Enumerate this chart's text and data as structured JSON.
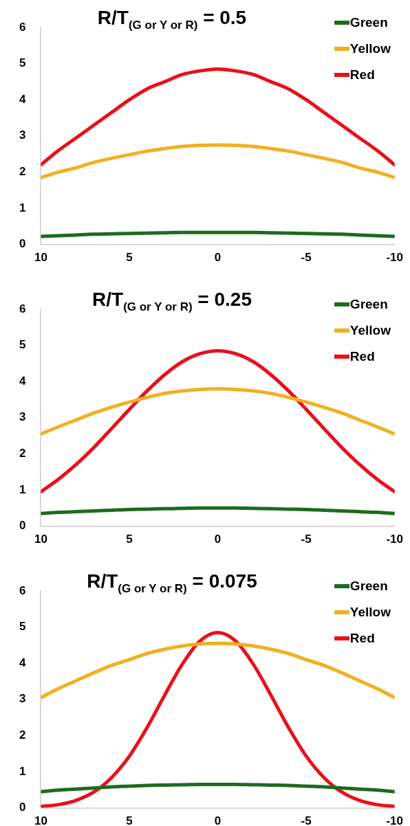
{
  "chart_data": [
    {
      "type": "line",
      "title": "R/T$_{(G or Y or R)}$ = 0.5",
      "x": [
        10,
        9,
        8,
        7,
        6,
        5,
        4,
        3,
        2,
        1,
        0,
        -1,
        -2,
        -3,
        -4,
        -5,
        -6,
        -7,
        -8,
        -9,
        -10
      ],
      "xlim": [
        10,
        -10
      ],
      "xticks": [
        10,
        5,
        0,
        -5,
        -10
      ],
      "ylim": [
        0,
        6
      ],
      "yticks": [
        0,
        1,
        2,
        3,
        4,
        5,
        6
      ],
      "grid": false,
      "legend": "top right",
      "marker": "none",
      "line_style": "solid",
      "series": [
        {
          "name": "Green",
          "color": "#1e6b1e",
          "values": [
            0.22,
            0.24,
            0.26,
            0.28,
            0.29,
            0.3,
            0.31,
            0.32,
            0.33,
            0.33,
            0.33,
            0.33,
            0.33,
            0.32,
            0.31,
            0.3,
            0.29,
            0.28,
            0.26,
            0.24,
            0.22
          ]
        },
        {
          "name": "Yellow",
          "color": "#f0b020",
          "values": [
            1.85,
            2.0,
            2.12,
            2.27,
            2.38,
            2.48,
            2.58,
            2.65,
            2.71,
            2.74,
            2.75,
            2.74,
            2.71,
            2.65,
            2.58,
            2.48,
            2.38,
            2.27,
            2.12,
            2.0,
            1.85
          ]
        },
        {
          "name": "Red",
          "color": "#e8101a",
          "values": [
            2.2,
            2.6,
            2.95,
            3.3,
            3.65,
            4.0,
            4.3,
            4.5,
            4.7,
            4.8,
            4.85,
            4.8,
            4.7,
            4.5,
            4.3,
            4.0,
            3.65,
            3.3,
            2.95,
            2.6,
            2.2
          ]
        }
      ]
    },
    {
      "type": "line",
      "title": "R/T$_{(G or Y or R)}$ = 0.25",
      "x": [
        10,
        9,
        8,
        7,
        6,
        5,
        4,
        3,
        2,
        1,
        0,
        -1,
        -2,
        -3,
        -4,
        -5,
        -6,
        -7,
        -8,
        -9,
        -10
      ],
      "xlim": [
        10,
        -10
      ],
      "xticks": [
        10,
        5,
        0,
        -5,
        -10
      ],
      "ylim": [
        0,
        6
      ],
      "yticks": [
        0,
        1,
        2,
        3,
        4,
        5,
        6
      ],
      "grid": false,
      "legend": "top right",
      "marker": "none",
      "line_style": "solid",
      "series": [
        {
          "name": "Green",
          "color": "#1e6b1e",
          "values": [
            0.35,
            0.38,
            0.4,
            0.42,
            0.44,
            0.46,
            0.47,
            0.48,
            0.49,
            0.5,
            0.5,
            0.5,
            0.49,
            0.48,
            0.47,
            0.46,
            0.44,
            0.42,
            0.4,
            0.38,
            0.35
          ]
        },
        {
          "name": "Yellow",
          "color": "#f0b020",
          "values": [
            2.55,
            2.75,
            2.94,
            3.13,
            3.29,
            3.43,
            3.56,
            3.67,
            3.74,
            3.78,
            3.8,
            3.78,
            3.74,
            3.67,
            3.56,
            3.43,
            3.29,
            3.13,
            2.94,
            2.75,
            2.55
          ]
        },
        {
          "name": "Red",
          "color": "#e8101a",
          "values": [
            0.95,
            1.3,
            1.71,
            2.18,
            2.7,
            3.23,
            3.74,
            4.19,
            4.55,
            4.77,
            4.85,
            4.77,
            4.55,
            4.19,
            3.74,
            3.23,
            2.7,
            2.18,
            1.71,
            1.3,
            0.95
          ]
        }
      ]
    },
    {
      "type": "line",
      "title": "R/T$_{(G or Y or R)}$ = 0.075",
      "x": [
        10,
        9,
        8,
        7,
        6,
        5,
        4,
        3,
        2,
        1,
        0,
        -1,
        -2,
        -3,
        -4,
        -5,
        -6,
        -7,
        -8,
        -9,
        -10
      ],
      "xlim": [
        10,
        -10
      ],
      "xticks": [
        10,
        5,
        0,
        -5,
        -10
      ],
      "ylim": [
        0,
        6
      ],
      "yticks": [
        0,
        1,
        2,
        3,
        4,
        5,
        6
      ],
      "grid": false,
      "legend": "top right",
      "marker": "none",
      "line_style": "solid",
      "series": [
        {
          "name": "Green",
          "color": "#1e6b1e",
          "values": [
            0.45,
            0.49,
            0.52,
            0.55,
            0.58,
            0.6,
            0.62,
            0.63,
            0.64,
            0.65,
            0.65,
            0.65,
            0.64,
            0.63,
            0.62,
            0.6,
            0.58,
            0.55,
            0.52,
            0.49,
            0.45
          ]
        },
        {
          "name": "Yellow",
          "color": "#f0b020",
          "values": [
            3.05,
            3.3,
            3.52,
            3.74,
            3.94,
            4.1,
            4.27,
            4.39,
            4.48,
            4.53,
            4.55,
            4.53,
            4.48,
            4.39,
            4.27,
            4.1,
            3.94,
            3.74,
            3.52,
            3.3,
            3.05
          ]
        },
        {
          "name": "Red",
          "color": "#e8101a",
          "values": [
            0.04,
            0.09,
            0.21,
            0.44,
            0.84,
            1.43,
            2.22,
            3.12,
            3.98,
            4.62,
            4.85,
            4.62,
            3.98,
            3.12,
            2.22,
            1.43,
            0.84,
            0.44,
            0.21,
            0.09,
            0.04
          ]
        }
      ]
    }
  ]
}
